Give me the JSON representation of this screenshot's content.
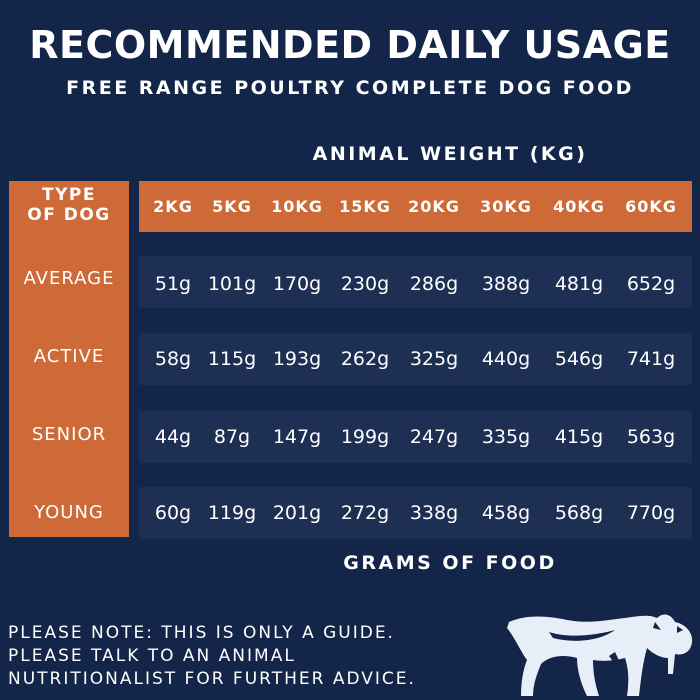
{
  "title": "RECOMMENDED DAILY USAGE",
  "subtitle": "FREE RANGE POULTRY COMPLETE DOG FOOD",
  "weight_heading": "ANIMAL WEIGHT (KG)",
  "type_heading": "TYPE\nOF DOG",
  "weights": [
    "2KG",
    "5KG",
    "10KG",
    "15KG",
    "20KG",
    "30KG",
    "40KG",
    "60KG"
  ],
  "rows": [
    {
      "type": "AVERAGE",
      "values": [
        "51g",
        "101g",
        "170g",
        "230g",
        "286g",
        "388g",
        "481g",
        "652g"
      ]
    },
    {
      "type": "ACTIVE",
      "values": [
        "58g",
        "115g",
        "193g",
        "262g",
        "325g",
        "440g",
        "546g",
        "741g"
      ]
    },
    {
      "type": "SENIOR",
      "values": [
        "44g",
        "87g",
        "147g",
        "199g",
        "247g",
        "335g",
        "415g",
        "563g"
      ]
    },
    {
      "type": "YOUNG",
      "values": [
        "60g",
        "119g",
        "201g",
        "272g",
        "338g",
        "458g",
        "568g",
        "770g"
      ]
    }
  ],
  "food_heading": "GRAMS OF FOOD",
  "note": [
    "PLEASE NOTE: THIS IS ONLY A GUIDE.",
    "PLEASE TALK TO AN ANIMAL",
    "NUTRITIONALIST FOR FURTHER ADVICE."
  ],
  "colors": {
    "background": "#132548",
    "accent": "#cd6a37",
    "row_band": "#1d2f52",
    "text": "#ffffff"
  },
  "logo_icon": "sabre-tooth-cat-icon"
}
